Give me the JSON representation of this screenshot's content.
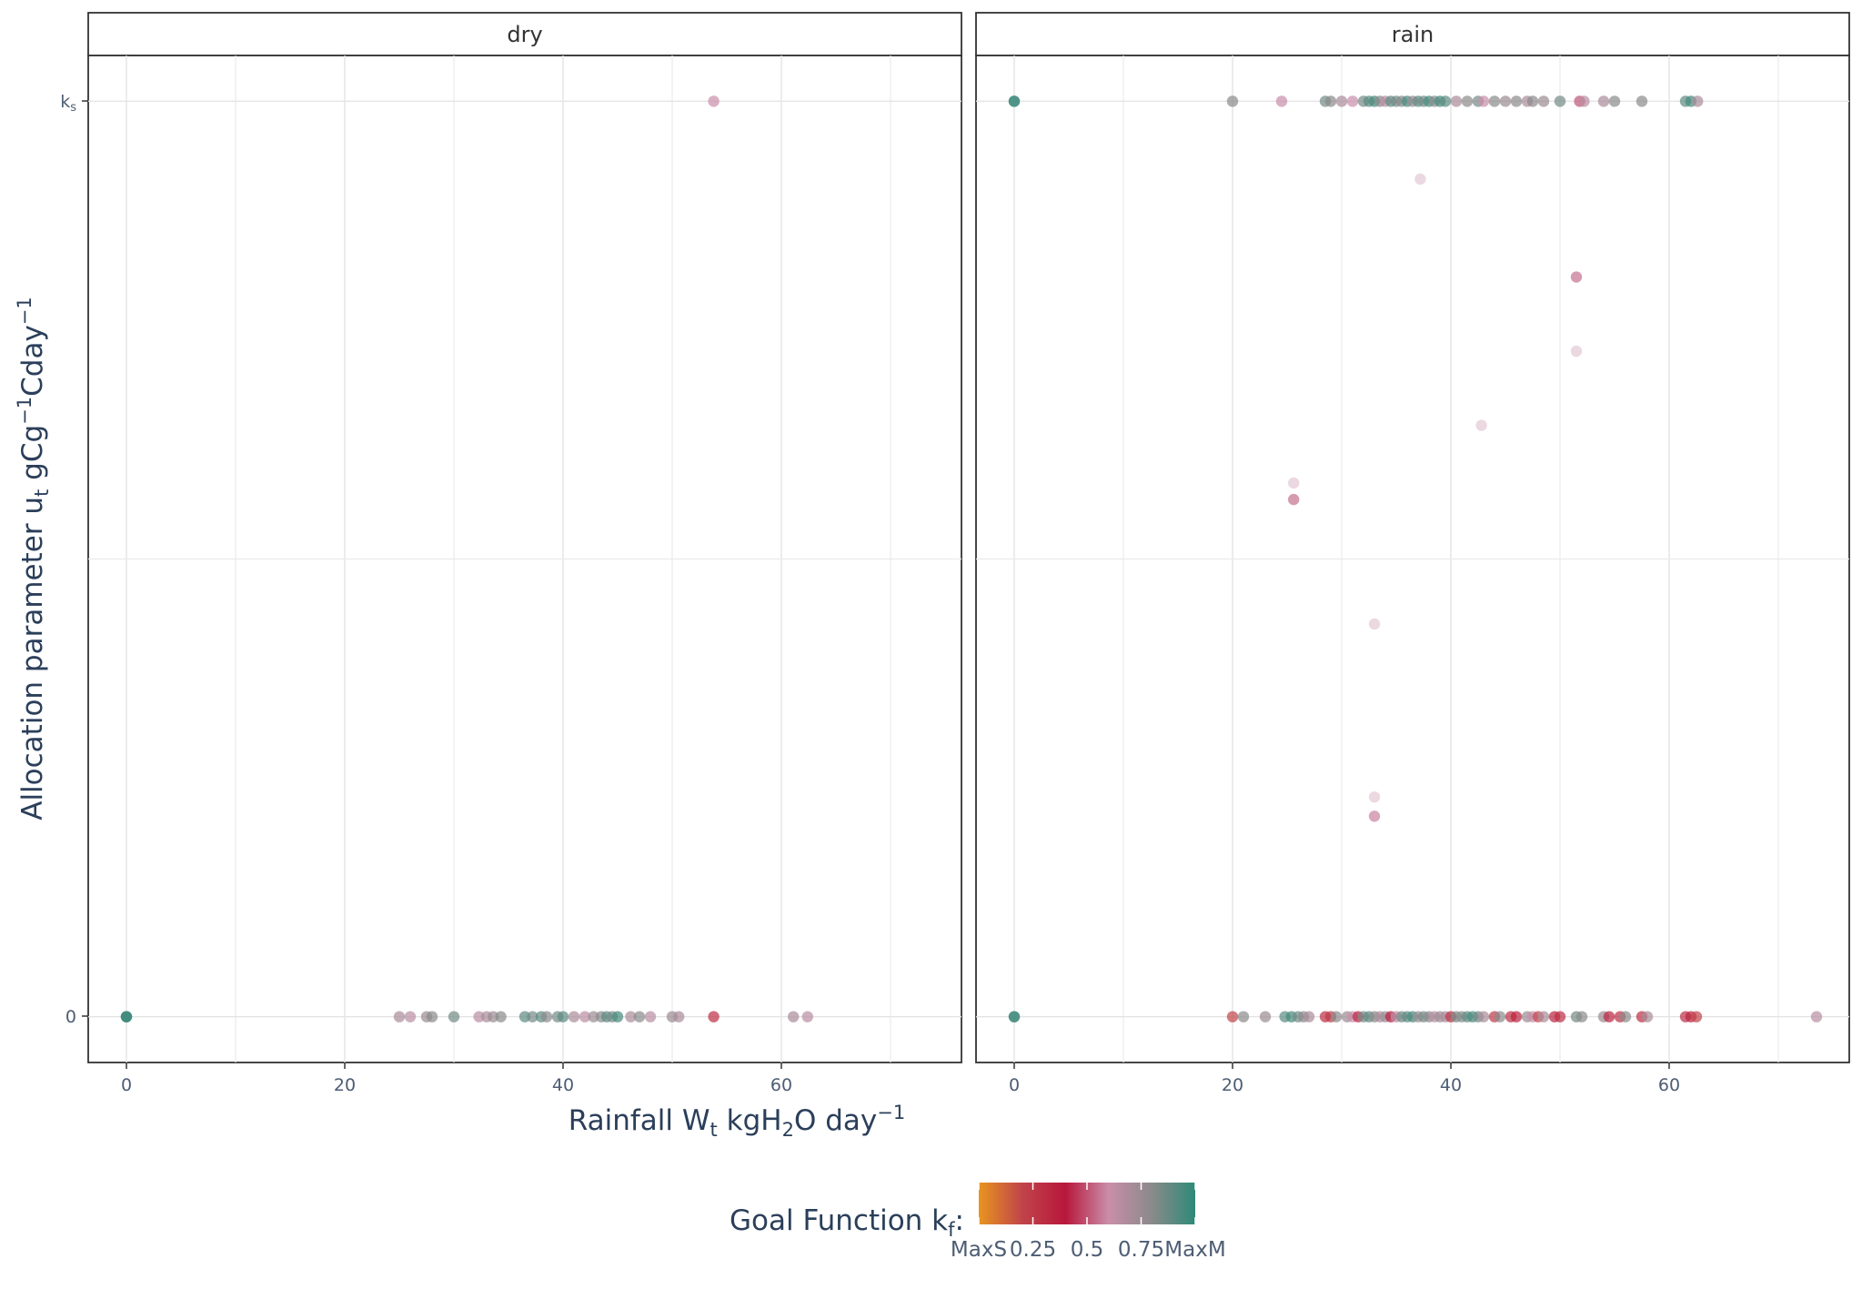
{
  "chart_data": {
    "type": "scatter",
    "title": "",
    "facets": [
      {
        "label": "dry"
      },
      {
        "label": "rain"
      }
    ],
    "xlabel": {
      "main": "Rainfall W",
      "sub": "t",
      "mid": " kgH",
      "sub2": "2",
      "tail": "O day",
      "sup": "−1"
    },
    "ylabel": {
      "main": "Allocation parameter u",
      "sub": "t",
      "mid": " gCg",
      "sup": "−1",
      "tail": "Cday",
      "sup2": "−1"
    },
    "x_ticks": [
      "0",
      "20",
      "40",
      "60"
    ],
    "x_tick_values": [
      0,
      20,
      40,
      60
    ],
    "xlim": [
      -3.5,
      76.5
    ],
    "y_ticks": [
      {
        "label": "0",
        "value": 0
      },
      {
        "label": "k",
        "sub": "s",
        "value": 1
      }
    ],
    "ylim": [
      -0.05,
      1.05
    ],
    "grid": true,
    "legend": {
      "title_main": "Goal Function k",
      "title_sub": "f",
      "title_tail": ":",
      "position": "bottom",
      "ticks": [
        "MaxS",
        "0.25",
        "0.5",
        "0.75",
        "MaxM"
      ],
      "tick_values": [
        0,
        0.25,
        0.5,
        0.75,
        1
      ],
      "colors": [
        "#e8951f",
        "#c0444a",
        "#b8173c",
        "#c98ea9",
        "#8a8a8a",
        "#2e8a78"
      ]
    },
    "series": [
      {
        "facet": "dry",
        "points": [
          [
            0,
            0,
            1
          ],
          [
            0,
            0,
            1
          ],
          [
            0,
            0,
            0.95
          ],
          [
            25,
            0,
            0.7
          ],
          [
            26,
            0,
            0.65
          ],
          [
            27.5,
            0,
            0.75
          ],
          [
            28,
            0,
            0.8
          ],
          [
            30,
            0,
            0.85
          ],
          [
            32.3,
            0,
            0.65
          ],
          [
            33,
            0,
            0.7
          ],
          [
            33.6,
            0,
            0.75
          ],
          [
            34.3,
            0,
            0.8
          ],
          [
            36.5,
            0,
            0.9
          ],
          [
            37.2,
            0,
            0.85
          ],
          [
            38,
            0,
            0.9
          ],
          [
            38.5,
            0,
            0.8
          ],
          [
            39.5,
            0,
            0.85
          ],
          [
            40,
            0,
            0.9
          ],
          [
            41,
            0,
            0.7
          ],
          [
            42,
            0,
            0.65
          ],
          [
            42.8,
            0,
            0.75
          ],
          [
            43.5,
            0,
            0.8
          ],
          [
            44,
            0,
            0.9
          ],
          [
            44.5,
            0,
            0.85
          ],
          [
            45,
            0,
            0.95
          ],
          [
            46.2,
            0,
            0.7
          ],
          [
            47,
            0,
            0.8
          ],
          [
            48,
            0,
            0.65
          ],
          [
            50,
            0,
            0.75
          ],
          [
            50.6,
            0,
            0.7
          ],
          [
            53.8,
            0,
            0.3
          ],
          [
            61.1,
            0,
            0.7
          ],
          [
            62.4,
            0,
            0.65
          ],
          [
            53.8,
            1,
            0.6
          ]
        ]
      },
      {
        "facet": "rain",
        "points": [
          [
            0,
            1,
            1
          ],
          [
            0,
            1,
            0.95
          ],
          [
            0,
            0,
            1
          ],
          [
            0,
            0,
            0.95
          ],
          [
            20,
            1,
            0.8
          ],
          [
            24.5,
            1,
            0.6
          ],
          [
            28.5,
            1,
            0.85
          ],
          [
            29,
            1,
            0.8
          ],
          [
            30,
            1,
            0.7
          ],
          [
            31,
            1,
            0.6
          ],
          [
            32,
            1,
            0.85
          ],
          [
            32.5,
            1,
            0.9
          ],
          [
            33,
            1,
            0.95
          ],
          [
            33.5,
            1,
            0.8
          ],
          [
            34,
            1,
            0.65
          ],
          [
            34.5,
            1,
            0.9
          ],
          [
            35,
            1,
            0.85
          ],
          [
            35.5,
            1,
            0.8
          ],
          [
            36,
            1,
            0.95
          ],
          [
            36.5,
            1,
            0.75
          ],
          [
            37,
            1,
            0.9
          ],
          [
            37.5,
            1,
            0.85
          ],
          [
            38,
            1,
            0.95
          ],
          [
            38.5,
            1,
            0.8
          ],
          [
            39,
            1,
            0.95
          ],
          [
            39.5,
            1,
            0.9
          ],
          [
            40.5,
            1,
            0.7
          ],
          [
            41.5,
            1,
            0.8
          ],
          [
            42.5,
            1,
            0.85
          ],
          [
            43,
            1,
            0.6
          ],
          [
            44,
            1,
            0.8
          ],
          [
            45,
            1,
            0.75
          ],
          [
            46,
            1,
            0.8
          ],
          [
            47,
            1,
            0.7
          ],
          [
            47.5,
            1,
            0.8
          ],
          [
            48.5,
            1,
            0.75
          ],
          [
            50,
            1,
            0.85
          ],
          [
            51.8,
            1,
            0.5
          ],
          [
            52.2,
            1,
            0.65
          ],
          [
            54,
            1,
            0.7
          ],
          [
            55,
            1,
            0.8
          ],
          [
            57.5,
            1,
            0.8
          ],
          [
            61.5,
            1,
            0.9
          ],
          [
            62,
            1,
            0.95
          ],
          [
            62.6,
            1,
            0.7
          ],
          [
            37.2,
            0.915,
            0.6
          ],
          [
            51.5,
            0.808,
            0.55
          ],
          [
            51.5,
            0.727,
            0.6
          ],
          [
            42.8,
            0.646,
            0.6
          ],
          [
            25.6,
            0.583,
            0.6
          ],
          [
            25.6,
            0.565,
            0.55
          ],
          [
            33,
            0.429,
            0.6
          ],
          [
            33,
            0.24,
            0.6
          ],
          [
            33,
            0.219,
            0.58
          ],
          [
            20,
            0,
            0.2
          ],
          [
            21,
            0,
            0.8
          ],
          [
            23,
            0,
            0.75
          ],
          [
            24.8,
            0,
            0.9
          ],
          [
            25.4,
            0,
            0.95
          ],
          [
            26,
            0,
            0.85
          ],
          [
            26.5,
            0,
            0.8
          ],
          [
            27,
            0,
            0.7
          ],
          [
            28.5,
            0,
            0.3
          ],
          [
            29,
            0,
            0.25
          ],
          [
            29.5,
            0,
            0.8
          ],
          [
            30.5,
            0,
            0.75
          ],
          [
            31,
            0,
            0.6
          ],
          [
            31.5,
            0,
            0.35
          ],
          [
            32,
            0,
            0.85
          ],
          [
            32.5,
            0,
            0.9
          ],
          [
            33,
            0,
            0.8
          ],
          [
            33.5,
            0,
            0.7
          ],
          [
            34,
            0,
            0.75
          ],
          [
            34.5,
            0,
            0.4
          ],
          [
            35,
            0,
            0.65
          ],
          [
            35.5,
            0,
            0.85
          ],
          [
            36,
            0,
            0.9
          ],
          [
            36.5,
            0,
            0.95
          ],
          [
            37,
            0,
            0.75
          ],
          [
            37.5,
            0,
            0.85
          ],
          [
            38,
            0,
            0.8
          ],
          [
            38.5,
            0,
            0.65
          ],
          [
            39,
            0,
            0.75
          ],
          [
            39.5,
            0,
            0.7
          ],
          [
            40,
            0,
            0.3
          ],
          [
            40.5,
            0,
            0.85
          ],
          [
            41,
            0,
            0.8
          ],
          [
            41.5,
            0,
            0.9
          ],
          [
            42,
            0,
            0.95
          ],
          [
            42.5,
            0,
            0.85
          ],
          [
            43,
            0,
            0.7
          ],
          [
            44,
            0,
            0.25
          ],
          [
            44.5,
            0,
            0.8
          ],
          [
            45.5,
            0,
            0.3
          ],
          [
            46,
            0,
            0.35
          ],
          [
            47,
            0,
            0.75
          ],
          [
            47.5,
            0,
            0.6
          ],
          [
            48,
            0,
            0.2
          ],
          [
            48.5,
            0,
            0.7
          ],
          [
            49.5,
            0,
            0.35
          ],
          [
            50,
            0,
            0.3
          ],
          [
            51.5,
            0,
            0.85
          ],
          [
            52,
            0,
            0.8
          ],
          [
            54,
            0,
            0.75
          ],
          [
            54.5,
            0,
            0.35
          ],
          [
            55.5,
            0,
            0.3
          ],
          [
            56,
            0,
            0.8
          ],
          [
            57.5,
            0,
            0.3
          ],
          [
            58,
            0,
            0.7
          ],
          [
            61.5,
            0,
            0.3
          ],
          [
            62,
            0,
            0.35
          ],
          [
            62.5,
            0,
            0.2
          ],
          [
            73.5,
            0,
            0.65
          ]
        ]
      }
    ]
  }
}
